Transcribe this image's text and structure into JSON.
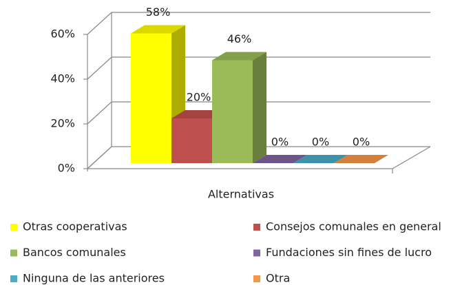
{
  "chart_data": {
    "type": "bar3d",
    "x_label": "Alternativas",
    "ylim": [
      0,
      60
    ],
    "yticks": [
      {
        "value": 0,
        "label": "0%"
      },
      {
        "value": 20,
        "label": "20%"
      },
      {
        "value": 40,
        "label": "40%"
      },
      {
        "value": 60,
        "label": "60%"
      }
    ],
    "grid": true,
    "legend": "bottom",
    "series": [
      {
        "name": "Otras cooperativas",
        "color": "#ffff00",
        "values": [
          58
        ],
        "value_labels": [
          "58%"
        ]
      },
      {
        "name": "Consejos comunales en general",
        "color": "#c0504d",
        "values": [
          20
        ],
        "value_labels": [
          "20%"
        ]
      },
      {
        "name": "Bancos comunales",
        "color": "#9bbb59",
        "values": [
          46
        ],
        "value_labels": [
          "46%"
        ]
      },
      {
        "name": "Fundaciones sin fines de lucro",
        "color": "#8064a2",
        "values": [
          0
        ],
        "value_labels": [
          "0%"
        ]
      },
      {
        "name": "Ninguna de las anteriores",
        "color": "#4bacc6",
        "values": [
          0
        ],
        "value_labels": [
          "0%"
        ]
      },
      {
        "name": "Otra",
        "color": "#f79646",
        "values": [
          0
        ],
        "value_labels": [
          "0%"
        ]
      }
    ]
  }
}
